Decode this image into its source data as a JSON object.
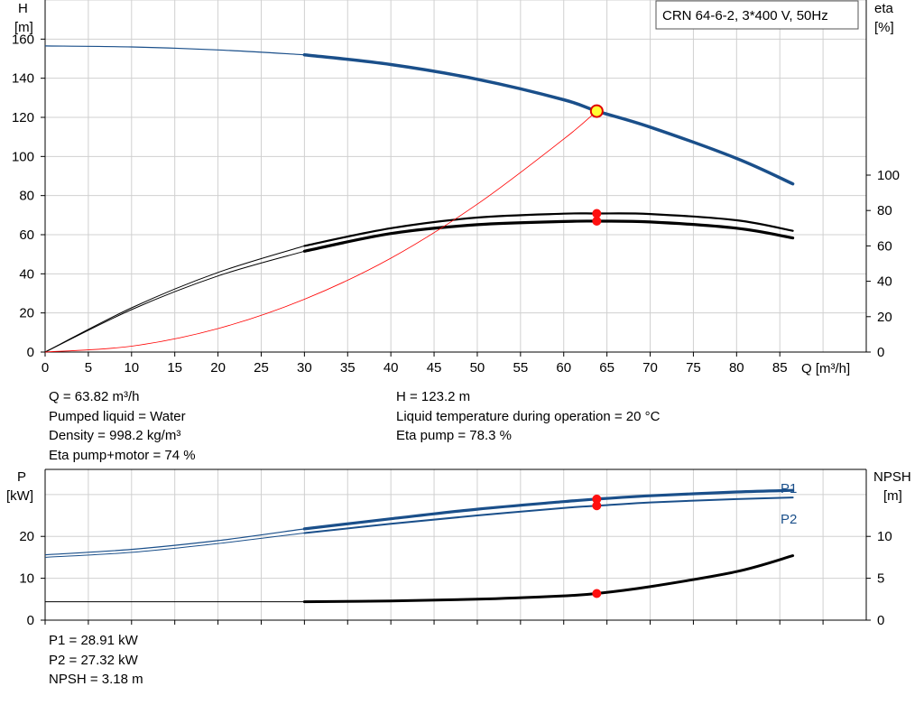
{
  "chart_data": [
    {
      "type": "line",
      "title": "CRN 64-6-2, 3*400 V, 50Hz",
      "xlabel": "Q [m³/h]",
      "ylabel_left": [
        "H",
        "[m]"
      ],
      "ylabel_right": [
        "eta",
        "[%]"
      ],
      "xlim": [
        0,
        95
      ],
      "ylim_left": [
        0,
        180
      ],
      "ylim_right": [
        0,
        100
      ],
      "xticks": [
        0,
        5,
        10,
        15,
        20,
        25,
        30,
        35,
        40,
        45,
        50,
        55,
        60,
        65,
        70,
        75,
        80,
        85
      ],
      "yticks_left": [
        0,
        20,
        40,
        60,
        80,
        100,
        120,
        140,
        160
      ],
      "yticks_right": [
        0,
        20,
        40,
        60,
        80,
        100
      ],
      "grid": true,
      "series": [
        {
          "key": "head",
          "color": "#1a4f8a",
          "x": [
            0,
            10,
            20,
            30,
            40,
            50,
            60,
            63.82,
            70,
            80,
            86.5
          ],
          "y": [
            156.5,
            156,
            154.5,
            152,
            147,
            139.5,
            129,
            123.2,
            115,
            99,
            86
          ]
        },
        {
          "key": "eta_pump",
          "color": "#000000",
          "x": [
            0,
            10,
            20,
            30,
            40,
            50,
            60,
            63.82,
            70,
            80,
            86.5
          ],
          "y": [
            0,
            25,
            45,
            60,
            70,
            76,
            78.2,
            78.3,
            78,
            74.5,
            68.5
          ]
        },
        {
          "key": "eta_total",
          "color": "#000000",
          "x": [
            0,
            10,
            20,
            30,
            40,
            50,
            60,
            63.82,
            70,
            80,
            86.5
          ],
          "y": [
            0,
            24,
            43,
            57,
            67,
            72,
            73.8,
            74,
            73.5,
            70,
            64.5
          ]
        },
        {
          "key": "system_curve",
          "color": "#ff0000",
          "x": [
            0,
            10,
            20,
            30,
            40,
            50,
            60,
            63.82
          ],
          "y": [
            0,
            3,
            12,
            27,
            48,
            75.6,
            108.9,
            123.2
          ]
        }
      ],
      "operating_point": {
        "x": 63.82,
        "head": 123.2,
        "eta_pump": 78.3,
        "eta_total": 74
      }
    },
    {
      "type": "line",
      "xlabel": "",
      "ylabel_left": [
        "P",
        "[kW]"
      ],
      "ylabel_right": [
        "NPSH",
        "[m]"
      ],
      "xlim": [
        0,
        95
      ],
      "ylim_left": [
        0,
        36
      ],
      "ylim_right": [
        0,
        18
      ],
      "yticks_left": [
        0,
        10,
        20
      ],
      "yticks_right": [
        0,
        5,
        10
      ],
      "grid": true,
      "series": [
        {
          "key": "p1",
          "name": "P1",
          "color": "#1a4f8a",
          "x": [
            0,
            10,
            20,
            30,
            40,
            50,
            60,
            63.82,
            70,
            80,
            86.5
          ],
          "y": [
            15.6,
            16.9,
            19,
            21.8,
            24.2,
            26.5,
            28.3,
            28.91,
            29.7,
            30.6,
            31
          ]
        },
        {
          "key": "p2",
          "name": "P2",
          "color": "#1a4f8a",
          "x": [
            0,
            10,
            20,
            30,
            40,
            50,
            60,
            63.82,
            70,
            80,
            86.5
          ],
          "y": [
            15,
            16.2,
            18.3,
            20.8,
            23,
            25,
            26.8,
            27.32,
            28.1,
            28.9,
            29.3
          ]
        },
        {
          "key": "npsh",
          "color": "#000000",
          "x": [
            0,
            10,
            20,
            30,
            40,
            50,
            60,
            63.82,
            70,
            80,
            86.5
          ],
          "y": [
            2.2,
            2.2,
            2.2,
            2.2,
            2.3,
            2.5,
            2.9,
            3.18,
            4,
            5.8,
            7.7
          ]
        }
      ],
      "operating_point": {
        "x": 63.82,
        "p1": 28.91,
        "p2": 27.32,
        "npsh": 3.18
      }
    }
  ],
  "info_top": {
    "q": "Q = 63.82 m³/h",
    "pumped_liquid": "Pumped liquid = Water",
    "density": "Density = 998.2 kg/m³",
    "eta_pump_motor": "Eta pump+motor = 74 %",
    "h": "H = 123.2 m",
    "liquid_temp": "Liquid temperature during operation = 20 °C",
    "eta_pump": "Eta pump = 78.3 %"
  },
  "info_bottom": {
    "p1": "P1 = 28.91 kW",
    "p2": "P2 = 27.32 kW",
    "npsh": "NPSH = 3.18 m"
  }
}
